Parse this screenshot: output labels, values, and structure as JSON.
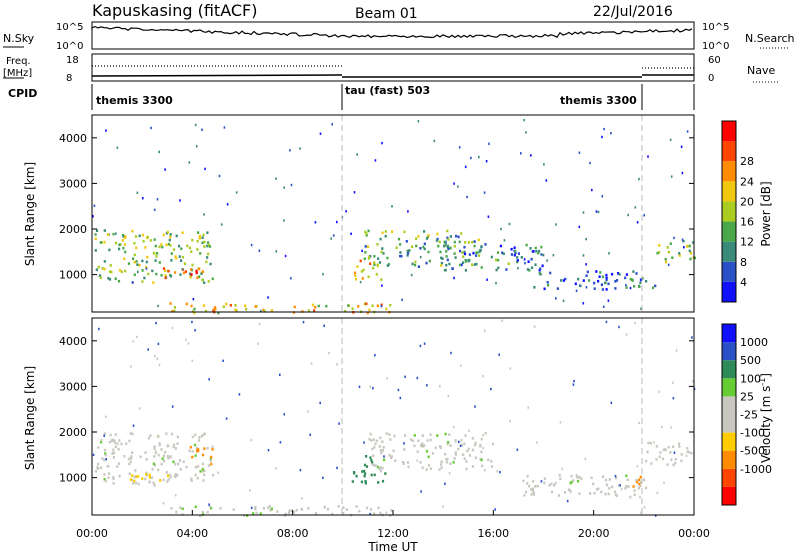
{
  "header": {
    "station": "Kapuskasing (fitACF)",
    "beam": "Beam 01",
    "date": "22/Jul/2016"
  },
  "noise_panel": {
    "left_label": "N.Sky",
    "left_ticks": [
      "10^5",
      "10^0"
    ],
    "right_label": "N.Search",
    "right_ticks": [
      "10^5",
      "10^0"
    ]
  },
  "freq_panel": {
    "left_label_1": "Freq.",
    "left_label_2": "[MHz]",
    "left_ticks": [
      "18",
      "8"
    ],
    "right_label": "Nave",
    "right_ticks": [
      "60",
      "0"
    ]
  },
  "cpid": {
    "label": "CPID",
    "segments": [
      {
        "text": "themis 3300",
        "start_hour": 0,
        "end_hour": 10
      },
      {
        "text": "tau (fast) 503",
        "start_hour": 10,
        "end_hour": 22
      },
      {
        "text": "themis 3300",
        "start_hour": 22,
        "end_hour": 24
      }
    ]
  },
  "colors": {
    "power_scale": [
      "#1010ff",
      "#2a50c8",
      "#3a8a7a",
      "#4aa84a",
      "#aacc20",
      "#f0c810",
      "#ff8c00",
      "#ff4500",
      "#ff0000"
    ],
    "velocity_scale": [
      "#ff0000",
      "#ff4500",
      "#ff8c00",
      "#ffcc00",
      "#c8c8c0",
      "#c8c8c0",
      "#66cc33",
      "#2e8b57",
      "#2a50c8",
      "#1010ff"
    ]
  },
  "chart_data": [
    {
      "type": "heatmap",
      "name": "Power",
      "ylabel": "Slant Range [km]",
      "xlim_hours": [
        0,
        24
      ],
      "ylim_km": [
        180,
        4500
      ],
      "yticks": [
        1000,
        2000,
        3000,
        4000
      ],
      "cbar_label": "Power [dB]",
      "cbar_range": [
        0,
        32
      ],
      "cbar_ticks": [
        "4",
        "8",
        "12",
        "16",
        "20",
        "24",
        "28"
      ],
      "cpid_change_hours": [
        10,
        22
      ],
      "echo_regions": [
        {
          "t0": 0.1,
          "t1": 4.8,
          "r0": 850,
          "r1": 2000,
          "level": 14
        },
        {
          "t0": 2.5,
          "t1": 4.5,
          "r0": 950,
          "r1": 1200,
          "level": 26
        },
        {
          "t0": 10.3,
          "t1": 11.5,
          "r0": 900,
          "r1": 1400,
          "level": 20
        },
        {
          "t0": 10.8,
          "t1": 15.5,
          "r0": 1200,
          "r1": 2000,
          "level": 12
        },
        {
          "t0": 14.0,
          "t1": 18.0,
          "r0": 1100,
          "r1": 1700,
          "level": 8
        },
        {
          "t0": 17.5,
          "t1": 22.5,
          "r0": 700,
          "r1": 1100,
          "level": 7
        },
        {
          "t0": 22.5,
          "t1": 24.0,
          "r0": 1300,
          "r1": 1800,
          "level": 14
        },
        {
          "t0": 3.0,
          "t1": 12.0,
          "r0": 180,
          "r1": 400,
          "level": 20
        }
      ]
    },
    {
      "type": "heatmap",
      "name": "Velocity",
      "xlabel": "Time UT",
      "ylabel": "Slant Range [km]",
      "xlim_hours": [
        0,
        24
      ],
      "ylim_km": [
        180,
        4500
      ],
      "yticks": [
        1000,
        2000,
        3000,
        4000
      ],
      "xtick_labels": [
        "00:00",
        "04:00",
        "08:00",
        "12:00",
        "16:00",
        "20:00",
        "00:00"
      ],
      "cbar_label": "Velocity [m s",
      "cbar_unit_sup": "-1",
      "cbar_unit_end": "]",
      "cbar_ticks": [
        "1000",
        "500",
        "100",
        "25",
        "-25",
        "-100",
        "-500",
        "-1000"
      ],
      "cpid_change_hours": [
        10,
        22
      ],
      "echo_regions": [
        {
          "t0": 0.1,
          "t1": 4.8,
          "r0": 850,
          "r1": 2000,
          "class": "grey"
        },
        {
          "t0": 3.8,
          "t1": 4.8,
          "r0": 1200,
          "r1": 1700,
          "class": "neg-med"
        },
        {
          "t0": 1.5,
          "t1": 3.0,
          "r0": 900,
          "r1": 1200,
          "class": "neg-low"
        },
        {
          "t0": 10.3,
          "t1": 11.7,
          "r0": 900,
          "r1": 1500,
          "class": "pos-low"
        },
        {
          "t0": 11.0,
          "t1": 16.0,
          "r0": 1200,
          "r1": 2000,
          "class": "grey"
        },
        {
          "t0": 17.0,
          "t1": 22.0,
          "r0": 600,
          "r1": 1100,
          "class": "grey"
        },
        {
          "t0": 22.0,
          "t1": 24.0,
          "r0": 1300,
          "r1": 1800,
          "class": "grey"
        },
        {
          "t0": 21.5,
          "t1": 22.2,
          "r0": 800,
          "r1": 1100,
          "class": "neg-med"
        },
        {
          "t0": 3.0,
          "t1": 12.0,
          "r0": 180,
          "r1": 400,
          "class": "grey"
        }
      ]
    }
  ]
}
